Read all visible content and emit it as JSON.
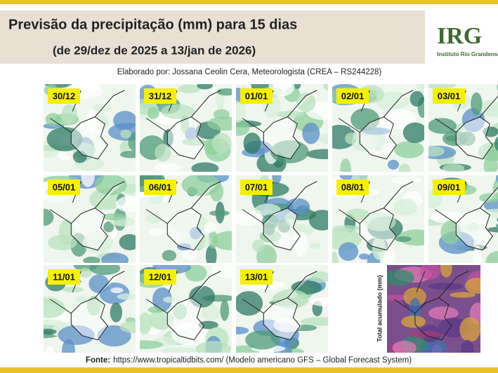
{
  "header": {
    "title": "Previsão da precipitação (mm) para 15 dias",
    "subtitle": "(de 29/dez de 2025 a 13/jan de 2026)",
    "author": "Elaborado por: Jossana Ceolin Cera, Meteorologista (CREA – RS244228)"
  },
  "logo": {
    "acronym": "IRG",
    "name": "Instituto Rio Grandense"
  },
  "panels": [
    "30/12",
    "31/12",
    "01/01",
    "02/01",
    "03/01",
    "05/01",
    "06/01",
    "07/01",
    "08/01",
    "09/01",
    "11/01",
    "12/01",
    "13/01"
  ],
  "total": {
    "label": "Total acumulado (mm)"
  },
  "footer": {
    "label": "Fonte:",
    "text": "https://www.tropicaltidbits.com/ (Modelo americano GFS – Global Forecast System)"
  }
}
